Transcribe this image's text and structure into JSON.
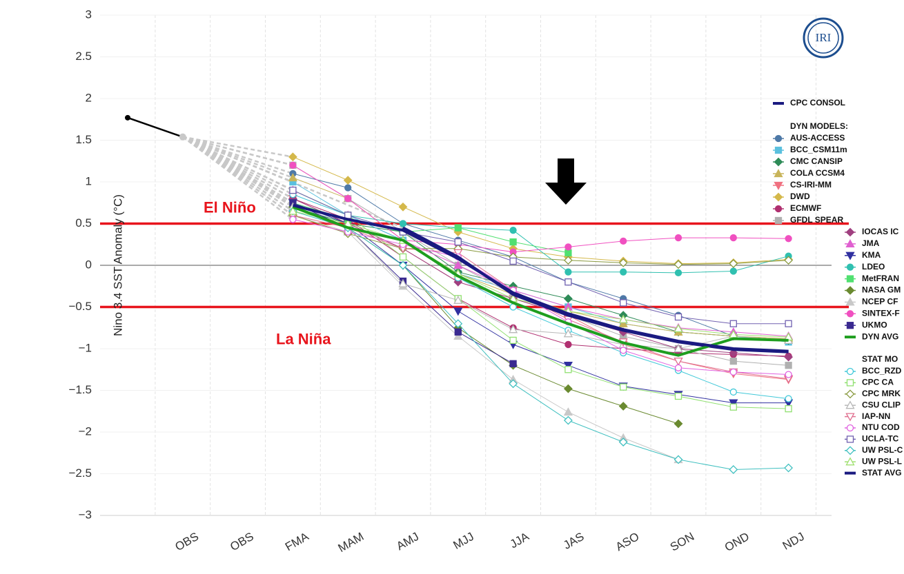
{
  "chart_data": {
    "type": "line",
    "y_label": "Nino 3.4 SST Anomaly (°C)",
    "logo": "IRI",
    "categories": [
      null,
      "OBS",
      "OBS",
      "FMA",
      "MAM",
      "AMJ",
      "MJJ",
      "JJA",
      "JAS",
      "ASO",
      "SON",
      "OND",
      "NDJ"
    ],
    "ylim": [
      -3,
      3
    ],
    "yticks": [
      {
        "value": -3,
        "label": "−3"
      },
      {
        "value": -2.5,
        "label": "−2.5"
      },
      {
        "value": -2,
        "label": "−2"
      },
      {
        "value": -1.5,
        "label": "−1.5"
      },
      {
        "value": -1,
        "label": "−1"
      },
      {
        "value": -0.5,
        "label": "−0.5"
      },
      0,
      0.5,
      1,
      1.5,
      2,
      2.5,
      3
    ],
    "grid": true,
    "thresholds": [
      {
        "text": "El Niño",
        "value": 0.5,
        "color": "#e8141c"
      },
      {
        "text": "La Niña",
        "value": -0.5,
        "color": "#e8141c"
      }
    ],
    "observed": {
      "color": "#000000",
      "values": [
        1.77,
        1.54,
        null,
        null,
        null,
        null,
        null,
        null,
        null,
        null,
        null,
        null,
        null
      ]
    },
    "legend_headers": [
      "DYN MODELS:",
      "STAT MO"
    ],
    "series": [
      {
        "name": "CPC CONSOL",
        "color": "#1a1a80",
        "line_width": 4,
        "marker": "none",
        "filled": true,
        "values": [
          null,
          null,
          null,
          null,
          null,
          0.45,
          0.1,
          -0.35,
          -0.6,
          -0.78,
          -0.92,
          -1.01,
          -1.04
        ]
      },
      {
        "name": "AUS-ACCESS",
        "color": "#4e79a7",
        "line_width": 1,
        "marker": "circle",
        "filled": true,
        "values": [
          null,
          null,
          null,
          1.1,
          0.93,
          0.5,
          0.3,
          0.1,
          -0.2,
          -0.4,
          -0.6,
          -0.85,
          -0.9
        ]
      },
      {
        "name": "BCC_CSM11m",
        "color": "#5bc0de",
        "line_width": 1,
        "marker": "square",
        "filled": true,
        "values": [
          null,
          null,
          null,
          1.0,
          0.6,
          0.3,
          -0.1,
          -0.3,
          -0.5,
          -0.7,
          -0.8,
          -0.85,
          -0.92
        ]
      },
      {
        "name": "CMC CANSIP",
        "color": "#2e8b57",
        "line_width": 1,
        "marker": "diamond",
        "filled": true,
        "values": [
          null,
          null,
          null,
          0.7,
          0.5,
          0.4,
          -0.08,
          -0.25,
          -0.4,
          -0.6,
          -0.8,
          -0.85,
          -0.9
        ]
      },
      {
        "name": "COLA CCSM4",
        "color": "#c8b45a",
        "line_width": 1,
        "marker": "triangle",
        "filled": true,
        "values": [
          null,
          null,
          null,
          1.05,
          0.8,
          0.3,
          -0.1,
          -0.35,
          -0.55,
          -0.7,
          -0.8,
          -0.85,
          -0.88
        ]
      },
      {
        "name": "CS-IRI-MM",
        "color": "#f07080",
        "line_width": 1,
        "marker": "triangle-down",
        "filled": true,
        "values": [
          null,
          null,
          null,
          0.8,
          0.5,
          0.2,
          -0.2,
          -0.4,
          -0.6,
          -0.95,
          -1.15,
          -1.3,
          -1.37
        ]
      },
      {
        "name": "DWD",
        "color": "#d4b84a",
        "line_width": 1,
        "marker": "diamond",
        "filled": true,
        "values": [
          null,
          null,
          null,
          1.3,
          1.02,
          0.7,
          0.4,
          0.2,
          0.1,
          0.05,
          0.02,
          0.03,
          0.07
        ]
      },
      {
        "name": "ECMWF",
        "color": "#b03070",
        "line_width": 1,
        "marker": "circle",
        "filled": true,
        "values": [
          null,
          null,
          null,
          0.8,
          0.55,
          0.1,
          -0.4,
          -0.75,
          -0.95,
          -1.0,
          -1.05,
          -1.07,
          -1.09
        ]
      },
      {
        "name": "GFDL SPEAR",
        "color": "#b0b0b0",
        "line_width": 1,
        "marker": "square",
        "filled": true,
        "values": [
          null,
          null,
          null,
          1.2,
          0.8,
          0.4,
          0.0,
          -0.35,
          -0.6,
          -0.85,
          -1.0,
          -1.15,
          -1.2
        ]
      },
      {
        "name": "IOCAS IC",
        "color": "#a04080",
        "line_width": 1,
        "marker": "diamond",
        "filled": true,
        "values": [
          null,
          null,
          null,
          0.8,
          0.5,
          0.2,
          -0.2,
          -0.4,
          -0.6,
          -0.8,
          -1.0,
          -1.05,
          -1.1
        ]
      },
      {
        "name": "JMA",
        "color": "#e060d0",
        "line_width": 1,
        "marker": "triangle",
        "filled": true,
        "values": [
          null,
          null,
          null,
          0.9,
          0.6,
          0.3,
          0.0,
          -0.3,
          -0.5,
          -0.65,
          -0.75,
          -0.8,
          -0.85
        ]
      },
      {
        "name": "KMA",
        "color": "#3030a0",
        "line_width": 1,
        "marker": "triangle-down",
        "filled": true,
        "values": [
          null,
          null,
          null,
          0.75,
          0.5,
          0.0,
          -0.55,
          -0.95,
          -1.2,
          -1.45,
          -1.55,
          -1.65,
          -1.65
        ]
      },
      {
        "name": "LDEO",
        "color": "#30c0b0",
        "line_width": 1,
        "marker": "circle",
        "filled": true,
        "values": [
          null,
          null,
          null,
          0.9,
          0.6,
          0.5,
          0.45,
          0.42,
          -0.08,
          -0.08,
          -0.09,
          -0.07,
          0.11
        ]
      },
      {
        "name": "MetFRAN",
        "color": "#50e070",
        "line_width": 1,
        "marker": "square",
        "filled": true,
        "values": [
          null,
          null,
          null,
          0.75,
          0.55,
          0.4,
          0.45,
          0.28,
          0.15,
          null,
          null,
          null,
          null
        ]
      },
      {
        "name": "NASA GM",
        "color": "#6a8a30",
        "line_width": 1,
        "marker": "diamond",
        "filled": true,
        "values": [
          null,
          null,
          null,
          0.7,
          0.45,
          0.0,
          -0.75,
          -1.2,
          -1.48,
          -1.69,
          -1.9,
          null,
          null
        ]
      },
      {
        "name": "NCEP CF",
        "color": "#c8c8c8",
        "line_width": 1,
        "marker": "triangle",
        "filled": true,
        "values": [
          null,
          null,
          null,
          0.6,
          0.4,
          -0.25,
          -0.85,
          -1.37,
          -1.76,
          -2.07,
          -2.33,
          null,
          null
        ]
      },
      {
        "name": "SINTEX-F",
        "color": "#f050c0",
        "line_width": 1,
        "marker": "circle",
        "filled": true,
        "values": [
          null,
          null,
          null,
          1.2,
          0.8,
          0.3,
          0.25,
          0.16,
          0.22,
          0.29,
          0.33,
          0.33,
          0.32
        ]
      },
      {
        "name": "UKMO",
        "color": "#3a2a90",
        "line_width": 1,
        "marker": "square",
        "filled": true,
        "values": [
          null,
          null,
          null,
          0.75,
          0.45,
          -0.19,
          -0.8,
          -1.18,
          null,
          null,
          null,
          null,
          null
        ]
      },
      {
        "name": "DYN AVG",
        "color": "#1f9e1f",
        "line_width": 4,
        "marker": "none",
        "filled": true,
        "values": [
          null,
          null,
          null,
          0.7,
          0.45,
          0.3,
          -0.13,
          -0.45,
          -0.7,
          -0.93,
          -1.08,
          -0.88,
          -0.9
        ]
      },
      {
        "name": "BCC_RZD",
        "color": "#40c8d8",
        "line_width": 1,
        "marker": "circle",
        "filled": false,
        "values": [
          null,
          null,
          null,
          0.85,
          0.6,
          0.3,
          -0.15,
          -0.5,
          -0.78,
          -1.05,
          -1.26,
          -1.52,
          -1.6
        ]
      },
      {
        "name": "CPC CA",
        "color": "#90e070",
        "line_width": 1,
        "marker": "square",
        "filled": false,
        "values": [
          null,
          null,
          null,
          0.9,
          0.6,
          0.1,
          -0.4,
          -0.9,
          -1.25,
          -1.46,
          -1.57,
          -1.7,
          -1.72
        ]
      },
      {
        "name": "CPC MRK",
        "color": "#8a9a40",
        "line_width": 1,
        "marker": "diamond",
        "filled": false,
        "values": [
          null,
          null,
          null,
          0.6,
          0.38,
          0.2,
          0.2,
          0.1,
          0.06,
          0.03,
          0.01,
          0.02,
          0.06
        ]
      },
      {
        "name": "CSU CLIP",
        "color": "#b8b8b8",
        "line_width": 1,
        "marker": "triangle",
        "filled": false,
        "values": [
          null,
          null,
          null,
          0.7,
          0.45,
          -0.22,
          -0.42,
          -0.77,
          -0.82,
          -0.95,
          -1.0,
          -0.85,
          -0.9
        ]
      },
      {
        "name": "IAP-NN",
        "color": "#e07090",
        "line_width": 1,
        "marker": "triangle-down",
        "filled": false,
        "values": [
          null,
          null,
          null,
          0.6,
          0.45,
          0.2,
          0.15,
          -0.3,
          -0.65,
          -0.92,
          -1.15,
          -1.28,
          -1.36
        ]
      },
      {
        "name": "NTU COD",
        "color": "#e060e0",
        "line_width": 1,
        "marker": "circle",
        "filled": false,
        "values": [
          null,
          null,
          null,
          0.55,
          0.4,
          0.25,
          0.1,
          -0.3,
          -0.68,
          -1.02,
          -1.23,
          -1.28,
          -1.31
        ]
      },
      {
        "name": "UCLA-TC",
        "color": "#7060b0",
        "line_width": 1,
        "marker": "square",
        "filled": false,
        "values": [
          null,
          null,
          null,
          0.9,
          0.6,
          0.4,
          0.28,
          0.05,
          -0.2,
          -0.45,
          -0.62,
          -0.7,
          -0.7
        ]
      },
      {
        "name": "UW PSL-C",
        "color": "#40c0c0",
        "line_width": 1,
        "marker": "diamond",
        "filled": false,
        "values": [
          null,
          null,
          null,
          0.65,
          0.45,
          0.0,
          -0.7,
          -1.42,
          -1.86,
          -2.12,
          -2.33,
          -2.45,
          -2.43
        ]
      },
      {
        "name": "UW PSL-L",
        "color": "#a0e070",
        "line_width": 1,
        "marker": "triangle",
        "filled": false,
        "values": [
          null,
          null,
          null,
          0.65,
          0.5,
          0.3,
          -0.1,
          -0.4,
          -0.55,
          -0.65,
          -0.76,
          -0.83,
          -0.86
        ]
      },
      {
        "name": "STAT AVG",
        "color": "#1a1a80",
        "line_width": 4,
        "marker": "none",
        "filled": true,
        "values": [
          null,
          null,
          null,
          0.72,
          0.55,
          0.42,
          0.08,
          -0.33,
          -0.58,
          -0.77,
          -0.91,
          -1.0,
          -1.03
        ]
      }
    ]
  }
}
